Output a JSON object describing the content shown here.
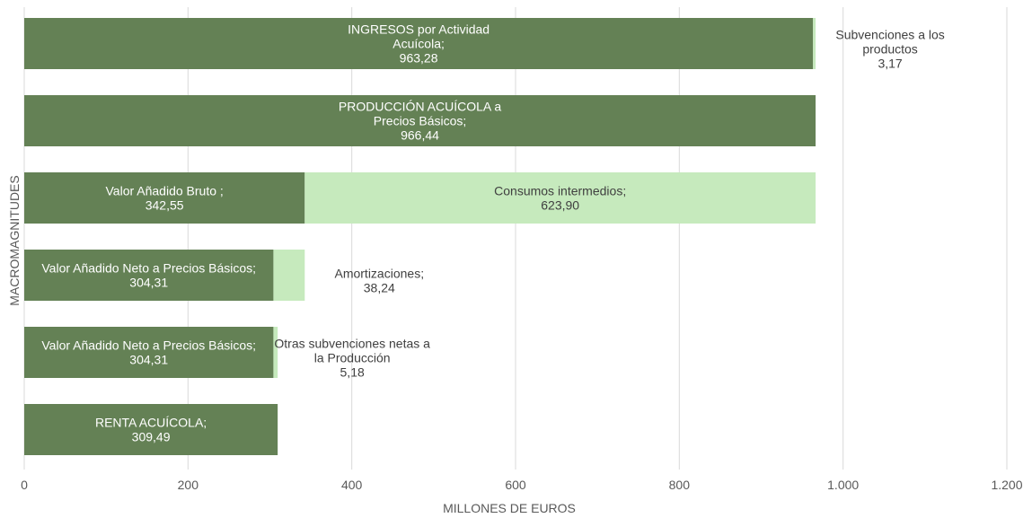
{
  "chart_data": {
    "type": "bar",
    "orientation": "horizontal",
    "stacked": true,
    "xlabel": "MILLONES DE EUROS",
    "ylabel": "MACROMAGNITUDES",
    "xlim": [
      0,
      1200
    ],
    "xticks": [
      {
        "value": 0,
        "label": "0"
      },
      {
        "value": 200,
        "label": "200"
      },
      {
        "value": 400,
        "label": "400"
      },
      {
        "value": 600,
        "label": "600"
      },
      {
        "value": 800,
        "label": "800"
      },
      {
        "value": 1000,
        "label": "1.000"
      },
      {
        "value": 1200,
        "label": "1.200"
      }
    ],
    "grid": true,
    "colors": {
      "primary": "#648155",
      "secondary": "#c6eabd",
      "primary_text": "#ffffff",
      "secondary_text": "#404040"
    },
    "rows": [
      {
        "primary": {
          "value": 963.28,
          "label": [
            "INGRESOS por Actividad",
            "Acuícola;",
            "963,28"
          ]
        },
        "secondary": {
          "value": 3.17,
          "label": [
            "Subvenciones  a los",
            "productos",
            "3,17"
          ]
        }
      },
      {
        "primary": {
          "value": 966.44,
          "label": [
            "PRODUCCIÓN ACUÍCOLA a",
            "Precios Básicos;",
            "966,44"
          ]
        },
        "secondary": null
      },
      {
        "primary": {
          "value": 342.55,
          "label": [
            "Valor Añadido Bruto ;",
            "342,55"
          ]
        },
        "secondary": {
          "value": 623.9,
          "label": [
            "Consumos intermedios;",
            "623,90"
          ]
        }
      },
      {
        "primary": {
          "value": 304.31,
          "label": [
            "Valor Añadido Neto a Precios Básicos;",
            "304,31"
          ]
        },
        "secondary": {
          "value": 38.24,
          "label": [
            "Amortizaciones;",
            "38,24"
          ]
        }
      },
      {
        "primary": {
          "value": 304.31,
          "label": [
            "Valor Añadido Neto a Precios Básicos;",
            "304,31"
          ]
        },
        "secondary": {
          "value": 5.18,
          "label": [
            "Otras subvenciones netas a",
            "la Producción",
            "5,18"
          ]
        }
      },
      {
        "primary": {
          "value": 309.49,
          "label": [
            "RENTA ACUÍCOLA;",
            "309,49"
          ]
        },
        "secondary": null
      }
    ]
  }
}
